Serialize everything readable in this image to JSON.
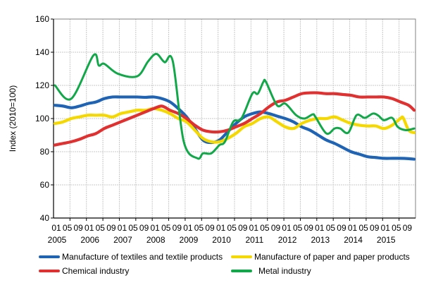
{
  "chart_data": {
    "type": "line",
    "title": "",
    "xlabel": "",
    "ylabel": "Index (2010=100)",
    "ylim": [
      40,
      160
    ],
    "yticks": [
      40,
      60,
      80,
      100,
      120,
      140,
      160
    ],
    "xrange": [
      "2005-01",
      "2015-12"
    ],
    "x_month_labels": [
      "01",
      "05",
      "09"
    ],
    "x_year_labels": [
      "2005",
      "2006",
      "2007",
      "2008",
      "2009",
      "2010",
      "2011",
      "2012",
      "2013",
      "2014",
      "2015"
    ],
    "grid": true,
    "legend_position": "bottom",
    "series": [
      {
        "name": "Manufacture of textiles and textile products",
        "color": "#1f64b4",
        "points": [
          [
            "2005-01",
            108
          ],
          [
            "2005-04",
            107.5
          ],
          [
            "2005-07",
            106.5
          ],
          [
            "2005-10",
            107.5
          ],
          [
            "2006-01",
            109
          ],
          [
            "2006-04",
            110
          ],
          [
            "2006-07",
            112
          ],
          [
            "2006-10",
            113
          ],
          [
            "2007-01",
            113
          ],
          [
            "2007-04",
            113
          ],
          [
            "2007-07",
            113
          ],
          [
            "2007-10",
            112.8
          ],
          [
            "2008-01",
            113
          ],
          [
            "2008-04",
            112
          ],
          [
            "2008-07",
            110
          ],
          [
            "2008-10",
            106
          ],
          [
            "2009-01",
            101
          ],
          [
            "2009-04",
            94
          ],
          [
            "2009-07",
            87
          ],
          [
            "2009-10",
            85.5
          ],
          [
            "2010-01",
            87
          ],
          [
            "2010-04",
            92
          ],
          [
            "2010-07",
            97
          ],
          [
            "2010-10",
            101
          ],
          [
            "2011-01",
            103
          ],
          [
            "2011-04",
            104
          ],
          [
            "2011-07",
            103
          ],
          [
            "2011-10",
            101.5
          ],
          [
            "2012-01",
            100
          ],
          [
            "2012-04",
            98
          ],
          [
            "2012-07",
            95
          ],
          [
            "2012-10",
            93
          ],
          [
            "2013-01",
            90
          ],
          [
            "2013-04",
            87
          ],
          [
            "2013-07",
            85
          ],
          [
            "2013-10",
            82.5
          ],
          [
            "2014-01",
            80
          ],
          [
            "2014-04",
            78.5
          ],
          [
            "2014-07",
            77
          ],
          [
            "2014-10",
            76.5
          ],
          [
            "2015-01",
            76
          ],
          [
            "2015-04",
            76
          ],
          [
            "2015-07",
            76
          ],
          [
            "2015-10",
            75.8
          ],
          [
            "2015-12",
            75.5
          ]
        ]
      },
      {
        "name": "Manufacture of paper and paper products",
        "color": "#f5d800",
        "points": [
          [
            "2005-01",
            97
          ],
          [
            "2005-04",
            98
          ],
          [
            "2005-07",
            100
          ],
          [
            "2005-10",
            101
          ],
          [
            "2006-01",
            102
          ],
          [
            "2006-04",
            102
          ],
          [
            "2006-07",
            102
          ],
          [
            "2006-10",
            101
          ],
          [
            "2007-01",
            103
          ],
          [
            "2007-04",
            104
          ],
          [
            "2007-07",
            105
          ],
          [
            "2007-10",
            105
          ],
          [
            "2008-01",
            106
          ],
          [
            "2008-04",
            105
          ],
          [
            "2008-07",
            103
          ],
          [
            "2008-10",
            100
          ],
          [
            "2009-01",
            98
          ],
          [
            "2009-04",
            93
          ],
          [
            "2009-07",
            88
          ],
          [
            "2009-10",
            86
          ],
          [
            "2010-01",
            86
          ],
          [
            "2010-04",
            88
          ],
          [
            "2010-07",
            91
          ],
          [
            "2010-10",
            95
          ],
          [
            "2011-01",
            97
          ],
          [
            "2011-04",
            100
          ],
          [
            "2011-07",
            101
          ],
          [
            "2011-10",
            98
          ],
          [
            "2012-01",
            95
          ],
          [
            "2012-04",
            94
          ],
          [
            "2012-07",
            97
          ],
          [
            "2012-10",
            99
          ],
          [
            "2013-01",
            100
          ],
          [
            "2013-04",
            100
          ],
          [
            "2013-07",
            101
          ],
          [
            "2013-10",
            99
          ],
          [
            "2014-01",
            97
          ],
          [
            "2014-04",
            96
          ],
          [
            "2014-07",
            95.5
          ],
          [
            "2014-10",
            95.5
          ],
          [
            "2015-01",
            94
          ],
          [
            "2015-04",
            96
          ],
          [
            "2015-07",
            100
          ],
          [
            "2015-08",
            100.4
          ],
          [
            "2015-10",
            93
          ],
          [
            "2015-12",
            91.5
          ]
        ]
      },
      {
        "name": "Chemical industry",
        "color": "#e03030",
        "points": [
          [
            "2005-01",
            84
          ],
          [
            "2005-04",
            85
          ],
          [
            "2005-07",
            86
          ],
          [
            "2005-10",
            87.5
          ],
          [
            "2006-01",
            89.5
          ],
          [
            "2006-04",
            91
          ],
          [
            "2006-07",
            94
          ],
          [
            "2006-10",
            96
          ],
          [
            "2007-01",
            98
          ],
          [
            "2007-04",
            100
          ],
          [
            "2007-07",
            102
          ],
          [
            "2007-10",
            104
          ],
          [
            "2008-01",
            106
          ],
          [
            "2008-04",
            107.5
          ],
          [
            "2008-07",
            105
          ],
          [
            "2008-10",
            103
          ],
          [
            "2009-01",
            100
          ],
          [
            "2009-04",
            96
          ],
          [
            "2009-07",
            93
          ],
          [
            "2009-10",
            92
          ],
          [
            "2010-01",
            92
          ],
          [
            "2010-04",
            93
          ],
          [
            "2010-07",
            95
          ],
          [
            "2010-10",
            97
          ],
          [
            "2011-01",
            100
          ],
          [
            "2011-04",
            103
          ],
          [
            "2011-07",
            107
          ],
          [
            "2011-10",
            110
          ],
          [
            "2012-01",
            111
          ],
          [
            "2012-04",
            113
          ],
          [
            "2012-07",
            115
          ],
          [
            "2012-10",
            115.5
          ],
          [
            "2013-01",
            115.5
          ],
          [
            "2013-04",
            115
          ],
          [
            "2013-07",
            115
          ],
          [
            "2013-10",
            114.5
          ],
          [
            "2014-01",
            114
          ],
          [
            "2014-04",
            113
          ],
          [
            "2014-07",
            113
          ],
          [
            "2014-10",
            113
          ],
          [
            "2015-01",
            113
          ],
          [
            "2015-04",
            112
          ],
          [
            "2015-07",
            110
          ],
          [
            "2015-10",
            108
          ],
          [
            "2015-12",
            105
          ]
        ]
      },
      {
        "name": "Metal industry",
        "color": "#12a84a",
        "points": [
          [
            "2005-01",
            120
          ],
          [
            "2005-07",
            112
          ],
          [
            "2006-03",
            138
          ],
          [
            "2006-05",
            132
          ],
          [
            "2006-07",
            133
          ],
          [
            "2006-12",
            127
          ],
          [
            "2007-07",
            125.5
          ],
          [
            "2007-11",
            134.5
          ],
          [
            "2008-02",
            139
          ],
          [
            "2008-05",
            134
          ],
          [
            "2008-08",
            134.5
          ],
          [
            "2008-12",
            86
          ],
          [
            "2009-05",
            76
          ],
          [
            "2009-07",
            79
          ],
          [
            "2009-10",
            79
          ],
          [
            "2010-01",
            84
          ],
          [
            "2010-03",
            86
          ],
          [
            "2010-06",
            98
          ],
          [
            "2010-09",
            100
          ],
          [
            "2011-01",
            115
          ],
          [
            "2011-03",
            115
          ],
          [
            "2011-05",
            122
          ],
          [
            "2011-06",
            122
          ],
          [
            "2011-10",
            108
          ],
          [
            "2012-01",
            109
          ],
          [
            "2012-05",
            102
          ],
          [
            "2012-08",
            100
          ],
          [
            "2012-11",
            102.5
          ],
          [
            "2012-12",
            101
          ],
          [
            "2013-04",
            91
          ],
          [
            "2013-07",
            94
          ],
          [
            "2013-09",
            94
          ],
          [
            "2013-12",
            91.5
          ],
          [
            "2014-03",
            102
          ],
          [
            "2014-06",
            100.4
          ],
          [
            "2014-09",
            103
          ],
          [
            "2014-11",
            101.7
          ],
          [
            "2015-01",
            99
          ],
          [
            "2015-04",
            100.4
          ],
          [
            "2015-06",
            95
          ],
          [
            "2015-09",
            93
          ],
          [
            "2015-12",
            94
          ]
        ]
      }
    ]
  }
}
